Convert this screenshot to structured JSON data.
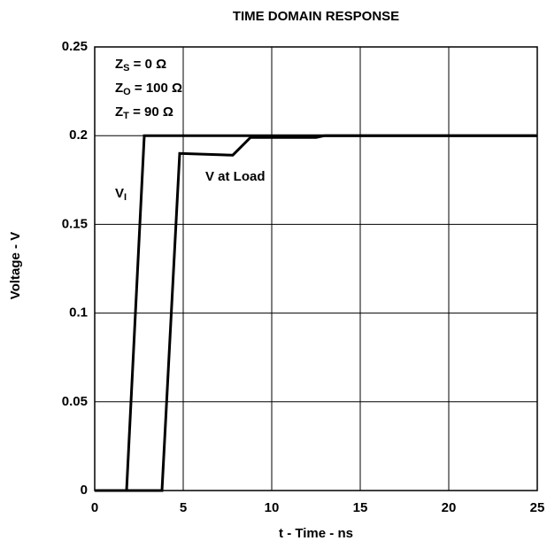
{
  "chart_data": {
    "type": "line",
    "title": "TIME DOMAIN RESPONSE",
    "x_label": "t - Time - ns",
    "y_label": "Voltage - V",
    "xlim": [
      0,
      25
    ],
    "ylim": [
      0,
      0.25
    ],
    "xticks": [
      0,
      5,
      10,
      15,
      20,
      25
    ],
    "yticks": [
      0,
      0.05,
      0.1,
      0.15,
      0.2,
      0.25
    ],
    "grid": true,
    "series": [
      {
        "color": "#000000",
        "x": [
          0,
          1.8,
          2.8,
          25
        ],
        "values": [
          0,
          0,
          0.2,
          0.2
        ]
      },
      {
        "name": "V at Load",
        "color": "#000000",
        "x": [
          0,
          3.8,
          4.8,
          7.8,
          8.8,
          12.5,
          13,
          25
        ],
        "values": [
          0,
          0,
          0.19,
          0.189,
          0.199,
          0.199,
          0.2,
          0.2
        ]
      }
    ],
    "annotations": [
      {
        "main": "Z",
        "sub": "S",
        "rest": " = 0 Ω"
      },
      {
        "main": "Z",
        "sub": "O",
        "rest": " = 100 Ω"
      },
      {
        "main": "Z",
        "sub": "T",
        "rest": " = 90 Ω"
      },
      {
        "main": "V",
        "sub": "I"
      }
    ]
  }
}
